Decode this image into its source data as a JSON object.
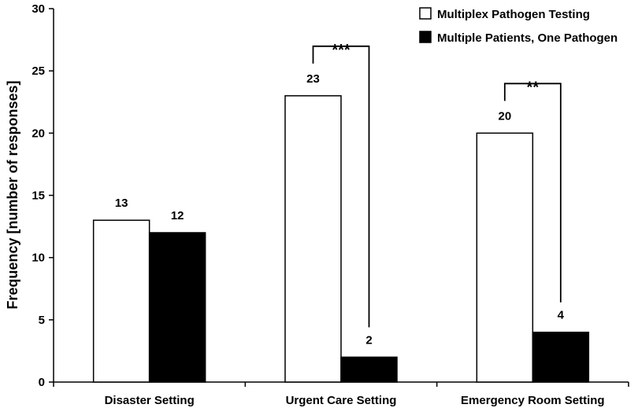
{
  "chart_data": {
    "type": "bar",
    "title": "",
    "xlabel": "",
    "ylabel": "Frequency [number of responses]",
    "ylim": [
      0,
      30
    ],
    "yticks": [
      0,
      5,
      10,
      15,
      20,
      25,
      30
    ],
    "grid": false,
    "legend_position": "top-right",
    "categories": [
      "Disaster Setting",
      "Urgent Care Setting",
      "Emergency Room Setting"
    ],
    "series": [
      {
        "name": "Multiplex Pathogen Testing",
        "values": [
          13,
          23,
          20
        ],
        "color": "#ffffff"
      },
      {
        "name": "Multiple Patients, One Pathogen",
        "values": [
          12,
          2,
          4
        ],
        "color": "#000000"
      }
    ],
    "annotations": [
      {
        "category_index": 1,
        "label": "***"
      },
      {
        "category_index": 2,
        "label": "**"
      }
    ]
  }
}
